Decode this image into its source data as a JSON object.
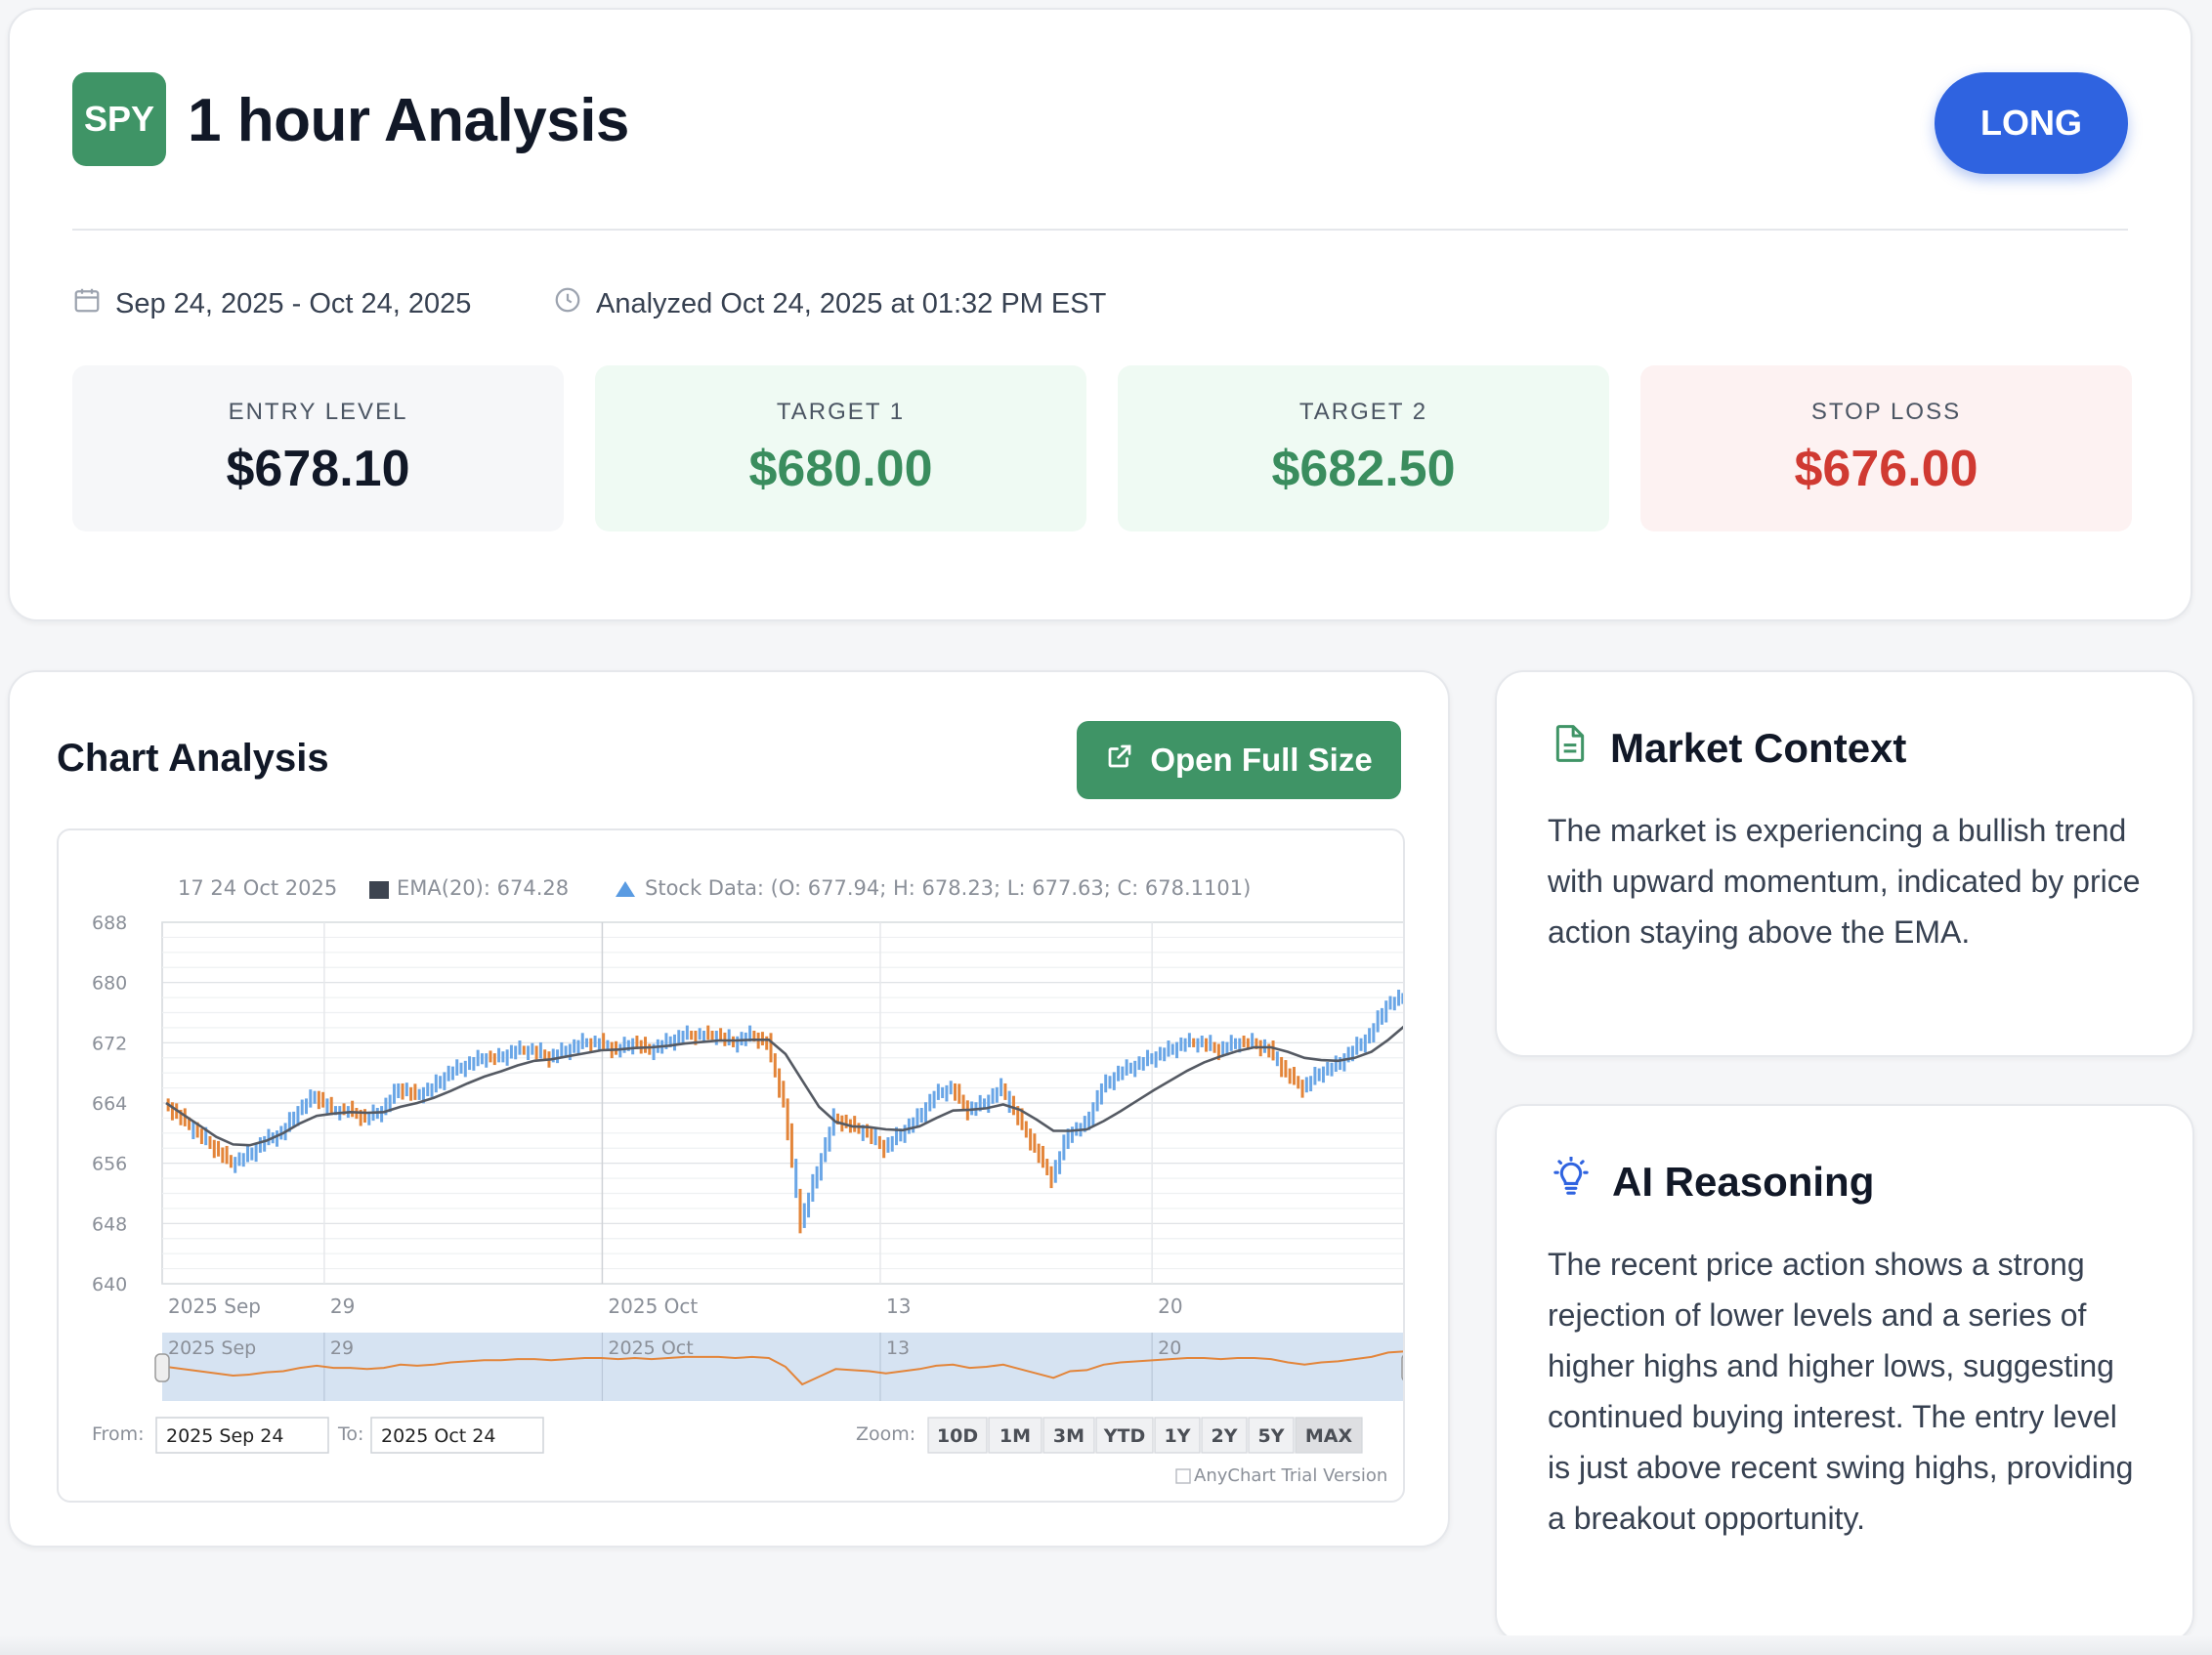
{
  "header": {
    "symbol": "SPY",
    "title": "1 hour Analysis",
    "direction": "LONG",
    "date_range": "Sep 24, 2025 - Oct 24, 2025",
    "analyzed_at": "Analyzed Oct 24, 2025 at 01:32 PM EST"
  },
  "levels": {
    "entry": {
      "label": "ENTRY LEVEL",
      "value": "$678.10"
    },
    "target1": {
      "label": "TARGET 1",
      "value": "$680.00"
    },
    "target2": {
      "label": "TARGET 2",
      "value": "$682.50"
    },
    "stop_loss": {
      "label": "STOP LOSS",
      "value": "$676.00"
    }
  },
  "chart_section": {
    "title": "Chart Analysis",
    "open_button": "Open Full Size"
  },
  "chart_legend": {
    "date": "17 24 Oct 2025",
    "ema": "EMA(20): 674.28",
    "stock": "Stock Data: (O: 677.94; H: 678.23; L: 677.63; C: 678.1101)"
  },
  "chart_controls": {
    "from_label": "From:",
    "from_value": "2025 Sep 24",
    "to_label": "To:",
    "to_value": "2025 Oct 24",
    "zoom_label": "Zoom:",
    "zoom_options": [
      "10D",
      "1M",
      "3M",
      "YTD",
      "1Y",
      "2Y",
      "5Y",
      "MAX"
    ],
    "zoom_selected": "MAX",
    "credit": "AnyChart Trial Version"
  },
  "chart_data": {
    "type": "line",
    "ylim": [
      640,
      688
    ],
    "y_ticks": [
      688,
      680,
      672,
      664,
      656,
      648,
      640
    ],
    "x_ticks": [
      "2025 Sep",
      "29",
      "2025 Oct",
      "13",
      "20"
    ],
    "navigator_ticks": [
      "2025 Sep",
      "29",
      "2025 Oct",
      "13",
      "20"
    ],
    "series": [
      {
        "name": "Stock Data",
        "values": [
          664,
          662,
          660,
          658,
          656,
          657,
          659,
          660,
          663,
          665,
          663,
          663,
          662,
          663,
          666,
          665,
          666,
          668,
          669,
          670,
          670,
          671,
          671,
          670,
          671,
          672,
          672,
          671,
          672,
          671,
          672,
          673,
          673,
          673,
          672,
          673,
          672,
          664,
          648,
          655,
          662,
          661,
          660,
          658,
          660,
          662,
          665,
          666,
          663,
          664,
          666,
          662,
          658,
          654,
          660,
          661,
          666,
          668,
          669,
          670,
          671,
          672,
          672,
          671,
          672,
          672,
          671,
          668,
          666,
          668,
          669,
          671,
          673,
          677,
          678
        ],
        "colors": {
          "up": "#6aa6e6",
          "down": "#e3853a"
        }
      },
      {
        "name": "EMA(20)",
        "values": [
          664,
          662.5,
          661,
          659.5,
          658.5,
          658.4,
          659,
          660,
          661.3,
          662.3,
          662.6,
          662.8,
          662.7,
          662.8,
          663.5,
          664,
          664.7,
          665.6,
          666.6,
          667.5,
          668.2,
          669,
          669.6,
          669.8,
          670.2,
          670.6,
          671,
          671.1,
          671.3,
          671.4,
          671.6,
          671.9,
          672.1,
          672.3,
          672.3,
          672.4,
          672.4,
          670.5,
          667,
          663.5,
          661.5,
          660.9,
          660.8,
          660.5,
          660.4,
          660.9,
          662,
          663,
          663.1,
          663.3,
          663.8,
          663.1,
          661.8,
          660.3,
          660.3,
          660.5,
          661.6,
          662.9,
          664.3,
          665.7,
          667,
          668.3,
          669.4,
          670.2,
          670.9,
          671.4,
          671.4,
          670.8,
          670,
          669.7,
          669.6,
          670,
          670.8,
          672.4,
          674.28
        ],
        "color": "#555a63"
      }
    ]
  },
  "market_context": {
    "title": "Market Context",
    "body": "The market is experiencing a bullish trend with upward momentum, indicated by price action staying above the EMA."
  },
  "ai_reasoning": {
    "title": "AI Reasoning",
    "body": "The recent price action shows a strong rejection of lower levels and a series of higher highs and higher lows, suggesting continued buying interest. The entry level is just above recent swing highs, providing a breakout opportunity."
  }
}
